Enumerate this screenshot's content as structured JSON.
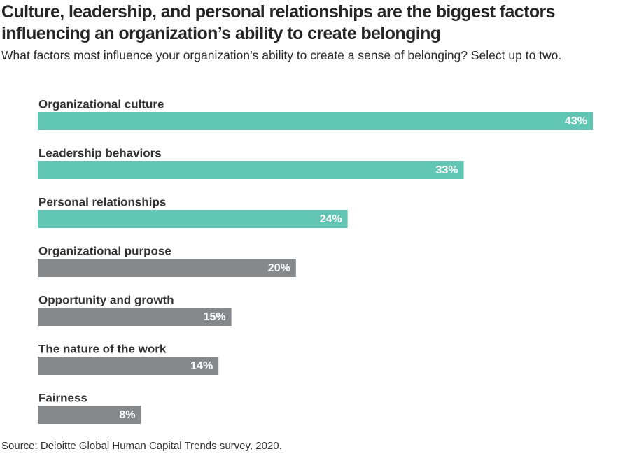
{
  "title": "Culture, leadership, and personal relationships are the biggest factors influencing an organization’s ability to create belonging",
  "subtitle": "What factors most influence your organization’s ability to create a sense of belonging? Select up to two.",
  "source": "Source: Deloitte Global Human Capital Trends survey, 2020.",
  "colors": {
    "highlight": "#62c6b4",
    "other": "#85898c"
  },
  "chart_data": {
    "type": "bar",
    "orientation": "horizontal",
    "title": "Culture, leadership, and personal relationships are the biggest factors influencing an organization’s ability to create belonging",
    "xlabel": "",
    "ylabel": "",
    "unit": "%",
    "xlim": [
      0,
      43
    ],
    "grid": false,
    "categories": [
      "Organizational culture",
      "Leadership behaviors",
      "Personal relationships",
      "Organizational purpose",
      "Opportunity and growth",
      "The nature of the work",
      "Fairness"
    ],
    "values": [
      43,
      33,
      24,
      20,
      15,
      14,
      8
    ],
    "value_labels": [
      "43%",
      "33%",
      "24%",
      "20%",
      "15%",
      "14%",
      "8%"
    ],
    "highlighted": [
      true,
      true,
      true,
      false,
      false,
      false,
      false
    ]
  }
}
